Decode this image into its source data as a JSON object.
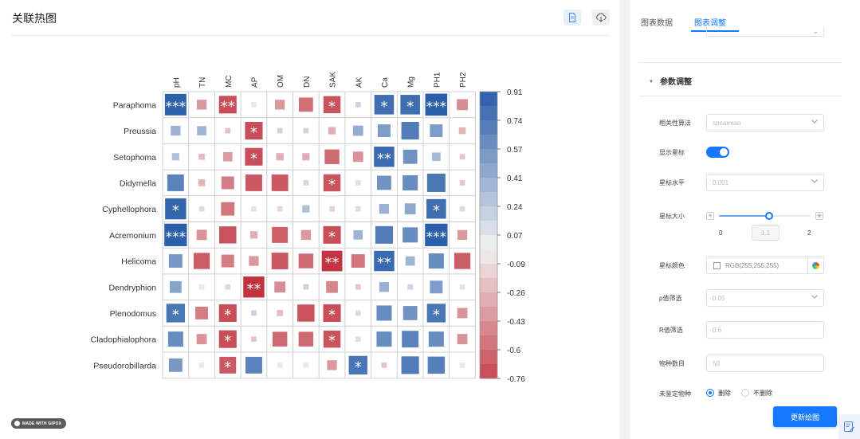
{
  "page": {
    "title": "关联热图"
  },
  "toolbar": {
    "doc_icon": "document-icon",
    "download_icon": "cloud-download-icon"
  },
  "badge": {
    "text": "MADE WITH GIPOX"
  },
  "chart_data": {
    "type": "heatmap",
    "columns": [
      "pH",
      "TN",
      "MC",
      "AP",
      "OM",
      "DN",
      "SAK",
      "AK",
      "Ca",
      "Mg",
      "PH1",
      "PH2"
    ],
    "rows": [
      "Paraphoma",
      "Preussia",
      "Setophoma",
      "Didymella",
      "Cyphellophora",
      "Acremonium",
      "Helicoma",
      "Dendryphion",
      "Plenodomus",
      "Cladophialophora",
      "Pseudorobillarda"
    ],
    "values": [
      [
        0.88,
        -0.4,
        -0.72,
        -0.05,
        -0.4,
        -0.58,
        -0.7,
        0.18,
        0.8,
        0.8,
        0.9,
        -0.45
      ],
      [
        0.4,
        0.38,
        -0.22,
        -0.72,
        0.18,
        0.18,
        -0.3,
        0.42,
        0.52,
        0.72,
        0.52,
        -0.28
      ],
      [
        0.3,
        -0.25,
        -0.38,
        -0.72,
        -0.3,
        -0.3,
        -0.6,
        -0.42,
        0.83,
        0.58,
        0.35,
        -0.2
      ],
      [
        0.68,
        -0.28,
        -0.52,
        -0.68,
        -0.68,
        -0.15,
        -0.7,
        -0.1,
        0.58,
        0.62,
        0.75,
        -0.2
      ],
      [
        0.86,
        0.12,
        -0.55,
        -0.08,
        -0.12,
        0.3,
        -0.14,
        0.12,
        0.4,
        0.45,
        0.8,
        0.12
      ],
      [
        0.92,
        -0.42,
        -0.7,
        -0.3,
        -0.65,
        -0.4,
        -0.72,
        0.38,
        0.72,
        0.62,
        0.92,
        -0.4
      ],
      [
        0.55,
        -0.66,
        -0.52,
        -0.4,
        -0.68,
        -0.6,
        -0.84,
        -0.55,
        0.83,
        0.38,
        0.62,
        -0.66
      ],
      [
        0.48,
        0.05,
        0.12,
        -0.86,
        -0.45,
        0.2,
        -0.48,
        -0.2,
        0.4,
        0.18,
        0.52,
        0.08
      ],
      [
        0.76,
        -0.52,
        -0.72,
        0.2,
        -0.25,
        -0.7,
        -0.72,
        0.12,
        0.62,
        0.58,
        0.76,
        -0.42
      ],
      [
        0.62,
        -0.42,
        -0.72,
        -0.2,
        -0.6,
        -0.6,
        -0.7,
        0.1,
        0.62,
        0.68,
        0.62,
        -0.42
      ],
      [
        0.55,
        0.05,
        -0.68,
        0.68,
        0.05,
        0.05,
        -0.4,
        0.76,
        -0.2,
        0.72,
        0.7,
        0.05
      ]
    ],
    "stars": [
      [
        "***",
        "",
        "**",
        "",
        "",
        "",
        "*",
        "",
        "*",
        "*",
        "***",
        ""
      ],
      [
        "",
        "",
        "",
        "*",
        "",
        "",
        "",
        "",
        "",
        "",
        "",
        ""
      ],
      [
        "",
        "",
        "",
        "*",
        "",
        "",
        "",
        "",
        "**",
        "",
        "",
        ""
      ],
      [
        "",
        "",
        "",
        "",
        "",
        "",
        "*",
        "",
        "",
        "",
        "",
        ""
      ],
      [
        "*",
        "",
        "",
        "",
        "",
        "",
        "",
        "",
        "",
        "",
        "*",
        ""
      ],
      [
        "***",
        "",
        "",
        "",
        "",
        "",
        "*",
        "",
        "",
        "",
        "***",
        ""
      ],
      [
        "",
        "",
        "",
        "",
        "",
        "",
        "**",
        "",
        "**",
        "",
        "",
        ""
      ],
      [
        "",
        "",
        "",
        "**",
        "",
        "",
        "",
        "",
        "",
        "",
        "",
        ""
      ],
      [
        "*",
        "",
        "*",
        "",
        "",
        "",
        "*",
        "",
        "",
        "",
        "*",
        ""
      ],
      [
        "",
        "",
        "*",
        "",
        "",
        "",
        "*",
        "",
        "",
        "",
        "",
        ""
      ],
      [
        "",
        "",
        "*",
        "",
        "",
        "",
        "",
        "*",
        "",
        "",
        "",
        ""
      ]
    ],
    "colorbar_ticks": [
      "0.91",
      "0.74",
      "0.57",
      "0.41",
      "0.24",
      "0.07",
      "-0.09",
      "-0.26",
      "-0.43",
      "-0.6",
      "-0.76"
    ],
    "colors": {
      "positive": "#2a5fa9",
      "negative": "#c1323e",
      "neutral": "#f2f2f2"
    },
    "vmin": -0.76,
    "vmax": 0.91
  },
  "panel": {
    "tabs": [
      "图表数据",
      "图表调整"
    ],
    "active_tab": "图表调整",
    "section_title": "参数调整",
    "fields": {
      "method": {
        "label": "相关性算法",
        "value": "spearman"
      },
      "show_stars": {
        "label": "显示星标"
      },
      "star_level": {
        "label": "星标水平",
        "value": "0.001"
      },
      "star_size": {
        "label": "星标大小",
        "min": "0",
        "max": "2",
        "value": "1.1"
      },
      "star_color": {
        "label": "星标颜色",
        "value": "RGB(255,255,255)"
      },
      "p_filter": {
        "label": "p值筛选",
        "value": "0.05"
      },
      "r_filter": {
        "label": "R值筛选",
        "value": "0.6"
      },
      "species_count": {
        "label": "物种数目",
        "value": "50"
      },
      "unknown_species": {
        "label": "未鉴定物种",
        "option_delete": "删除",
        "option_keep": "不删除"
      }
    },
    "update_button": "更新绘图"
  }
}
